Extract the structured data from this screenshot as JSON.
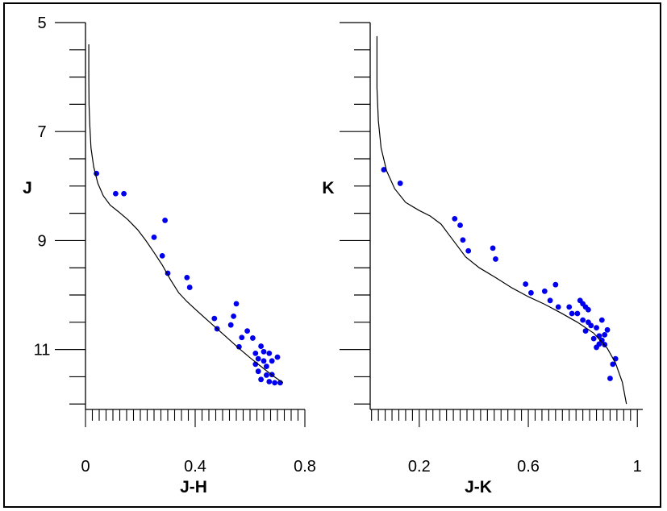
{
  "chart_data": [
    {
      "type": "scatter",
      "xlabel": "J-H",
      "ylabel": "J",
      "xlim": [
        0,
        0.8
      ],
      "ylim": [
        12.1,
        5
      ],
      "y_inverted": true,
      "x_tick_labels": [
        "0",
        "0.4",
        "0.8"
      ],
      "x_ticks": [
        0,
        0.4,
        0.8
      ],
      "y_tick_labels": [
        "5",
        "7",
        "9",
        "11"
      ],
      "y_ticks": [
        5,
        7,
        9,
        11
      ],
      "marker_color": "#0000ee",
      "line_color": "#000000",
      "series": [
        {
          "kind": "points",
          "x": [
            0.04,
            0.11,
            0.14,
            0.25,
            0.28,
            0.29,
            0.3,
            0.37,
            0.38,
            0.47,
            0.48,
            0.53,
            0.54,
            0.55,
            0.56,
            0.57,
            0.59,
            0.61,
            0.62,
            0.62,
            0.63,
            0.63,
            0.64,
            0.64,
            0.65,
            0.65,
            0.66,
            0.66,
            0.67,
            0.67,
            0.68,
            0.68,
            0.69,
            0.7,
            0.71
          ],
          "y": [
            7.77,
            8.14,
            8.14,
            8.94,
            9.28,
            8.63,
            9.6,
            9.68,
            9.86,
            10.43,
            10.62,
            10.55,
            10.39,
            10.16,
            10.95,
            10.78,
            10.66,
            10.79,
            11.07,
            11.27,
            11.17,
            11.4,
            10.94,
            11.55,
            11.04,
            11.21,
            11.31,
            11.47,
            11.07,
            11.59,
            11.21,
            11.46,
            11.61,
            11.14,
            11.61
          ]
        },
        {
          "kind": "line",
          "x": [
            0.012,
            0.012,
            0.013,
            0.016,
            0.02,
            0.03,
            0.045,
            0.065,
            0.09,
            0.12,
            0.155,
            0.19,
            0.22,
            0.25,
            0.28,
            0.31,
            0.34,
            0.37,
            0.4,
            0.44,
            0.48,
            0.52,
            0.56,
            0.6,
            0.64,
            0.68,
            0.72
          ],
          "y": [
            5.4,
            6.0,
            6.5,
            6.9,
            7.3,
            7.65,
            7.95,
            8.18,
            8.35,
            8.47,
            8.62,
            8.8,
            9.0,
            9.22,
            9.45,
            9.72,
            9.96,
            10.12,
            10.26,
            10.44,
            10.62,
            10.8,
            10.98,
            11.15,
            11.31,
            11.47,
            11.61
          ]
        }
      ]
    },
    {
      "type": "scatter",
      "xlabel": "J-K",
      "ylabel": "K",
      "xlim": [
        0.02,
        1.02
      ],
      "ylim": [
        12.1,
        5
      ],
      "y_inverted": true,
      "x_tick_labels": [
        "0.2",
        "0.6",
        "1"
      ],
      "x_ticks": [
        0.2,
        0.6,
        1
      ],
      "y_tick_labels": [],
      "marker_color": "#0000ee",
      "line_color": "#000000",
      "series": [
        {
          "kind": "points",
          "x": [
            0.07,
            0.13,
            0.33,
            0.35,
            0.36,
            0.38,
            0.47,
            0.48,
            0.59,
            0.61,
            0.66,
            0.68,
            0.7,
            0.71,
            0.75,
            0.76,
            0.78,
            0.79,
            0.8,
            0.8,
            0.81,
            0.81,
            0.82,
            0.82,
            0.83,
            0.84,
            0.85,
            0.85,
            0.86,
            0.86,
            0.87,
            0.87,
            0.88,
            0.88,
            0.89,
            0.9,
            0.91,
            0.92
          ],
          "y": [
            7.7,
            7.95,
            8.6,
            8.72,
            8.99,
            9.19,
            9.14,
            9.34,
            9.8,
            9.96,
            9.93,
            10.1,
            9.81,
            10.22,
            10.22,
            10.34,
            10.34,
            10.1,
            10.16,
            10.46,
            10.22,
            10.66,
            10.27,
            10.5,
            10.56,
            10.8,
            10.6,
            10.96,
            10.9,
            10.75,
            10.83,
            10.46,
            10.91,
            10.73,
            10.64,
            11.53,
            11.27,
            11.17
          ]
        },
        {
          "kind": "line",
          "x": [
            0.045,
            0.045,
            0.05,
            0.06,
            0.08,
            0.11,
            0.15,
            0.2,
            0.24,
            0.28,
            0.31,
            0.34,
            0.37,
            0.42,
            0.48,
            0.54,
            0.6,
            0.66,
            0.72,
            0.78,
            0.84,
            0.89,
            0.92,
            0.945,
            0.96
          ],
          "y": [
            5.25,
            6.2,
            6.8,
            7.3,
            7.72,
            8.05,
            8.3,
            8.45,
            8.55,
            8.7,
            8.9,
            9.1,
            9.3,
            9.5,
            9.68,
            9.87,
            10.03,
            10.17,
            10.33,
            10.5,
            10.7,
            10.98,
            11.25,
            11.6,
            12.0
          ]
        }
      ]
    }
  ]
}
